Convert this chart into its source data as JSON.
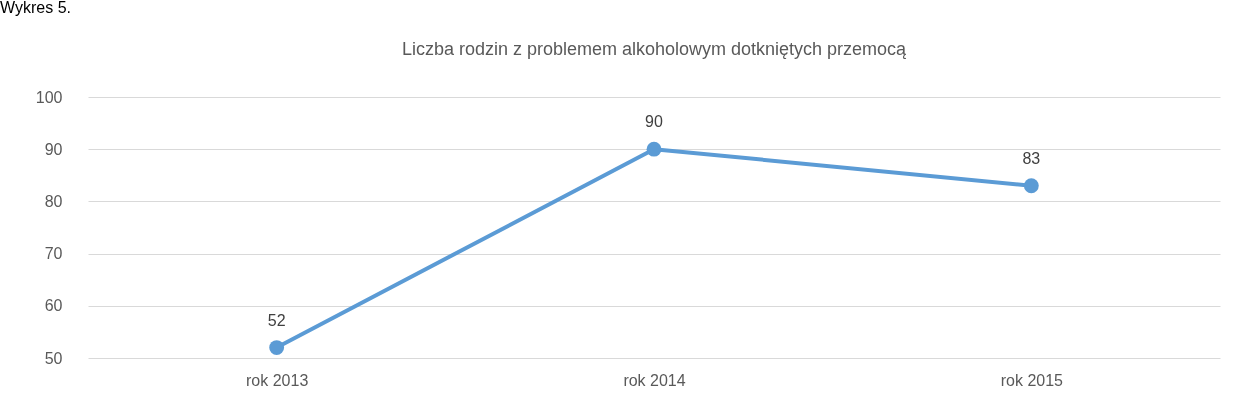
{
  "chart_data": {
    "type": "line",
    "title": "Liczba rodzin z problemem alkoholowym dotkniętych przemocą",
    "annotations": [
      "Wykres 5."
    ],
    "categories": [
      "rok 2013",
      "rok 2014",
      "rok 2015"
    ],
    "series": [
      {
        "color": "#5b9bd5",
        "values": [
          52,
          90,
          83
        ]
      }
    ],
    "ylim": [
      50,
      100
    ],
    "yticks": [
      50,
      60,
      70,
      80,
      90,
      100
    ],
    "grid": "y",
    "marker": "circle",
    "line_style": "solid",
    "data_labels": true
  }
}
